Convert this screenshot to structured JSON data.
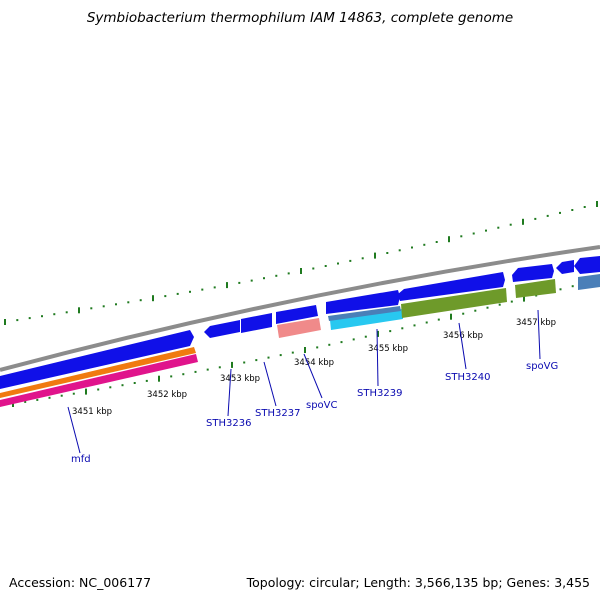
{
  "title": "Symbiobacterium thermophilum IAM 14863, complete genome",
  "footer": {
    "accession": "Accession: NC_006177",
    "summary": "Topology: circular; Length: 3,566,135 bp; Genes: 3,455"
  },
  "colors": {
    "backbone": "#8c8c8c",
    "cds_blue": "#1010e8",
    "orange": "#f07a10",
    "magenta": "#e0148c",
    "salmon": "#f08a8a",
    "cyan": "#28c8f0",
    "steel": "#4a7fb8",
    "olive": "#6e9a2a",
    "tick_green": "#1f7a1f",
    "label_blue": "#0a0ab0"
  },
  "ticks": [
    {
      "label": "3451 kbp"
    },
    {
      "label": "3452 kbp"
    },
    {
      "label": "3453 kbp"
    },
    {
      "label": "3454 kbp"
    },
    {
      "label": "3455 kbp"
    },
    {
      "label": "3456 kbp"
    },
    {
      "label": "3457 kbp"
    }
  ],
  "genes": [
    {
      "label": "mfd"
    },
    {
      "label": "STH3236"
    },
    {
      "label": "STH3237"
    },
    {
      "label": "spoVC"
    },
    {
      "label": "STH3239"
    },
    {
      "label": "STH3240"
    },
    {
      "label": "spoVG"
    }
  ]
}
